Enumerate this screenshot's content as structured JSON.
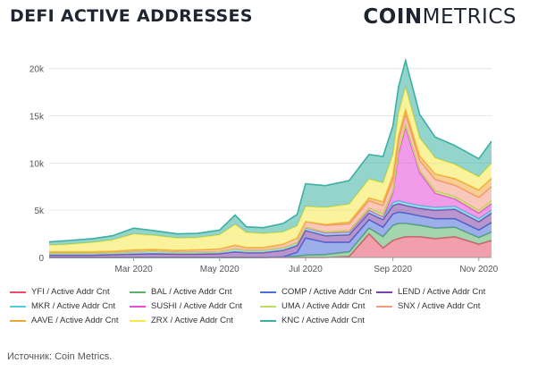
{
  "header": {
    "title": "DEFI ACTIVE ADDRESSES",
    "brand_bold": "COIN",
    "brand_light": "METRICS"
  },
  "source": "Источник: Coin Metrics.",
  "chart_data": {
    "type": "area",
    "stacked": true,
    "title": "DEFI ACTIVE ADDRESSES",
    "xlabel": "",
    "ylabel": "",
    "ylim": [
      0,
      23000
    ],
    "y_ticks": [
      0,
      5000,
      10000,
      15000,
      20000
    ],
    "y_tick_labels": [
      "0",
      "5k",
      "10k",
      "15k",
      "20k"
    ],
    "x_ticks": [
      "2020-03-01",
      "2020-05-01",
      "2020-07-01",
      "2020-09-01",
      "2020-11-01"
    ],
    "x_tick_labels": [
      "Mar 2020",
      "May 2020",
      "Jul 2020",
      "Sep 2020",
      "Nov 2020"
    ],
    "grid": "horizontal",
    "legend_position": "bottom",
    "x": [
      "2020-01-01",
      "2020-01-15",
      "2020-02-01",
      "2020-02-15",
      "2020-03-01",
      "2020-03-15",
      "2020-04-01",
      "2020-04-15",
      "2020-05-01",
      "2020-05-12",
      "2020-05-20",
      "2020-06-01",
      "2020-06-15",
      "2020-06-25",
      "2020-07-01",
      "2020-07-15",
      "2020-08-01",
      "2020-08-15",
      "2020-08-25",
      "2020-09-01",
      "2020-09-05",
      "2020-09-10",
      "2020-09-20",
      "2020-10-01",
      "2020-10-15",
      "2020-11-01",
      "2020-11-10"
    ],
    "series": [
      {
        "name": "YFI / Active Addr Cnt",
        "color": "#e8506a",
        "values": [
          0,
          0,
          0,
          0,
          0,
          0,
          0,
          0,
          0,
          0,
          0,
          0,
          0,
          0,
          0,
          0,
          100,
          2500,
          1000,
          1800,
          2000,
          2200,
          2200,
          2000,
          2200,
          1400,
          1800
        ]
      },
      {
        "name": "BAL / Active Addr Cnt",
        "color": "#5bb36b",
        "values": [
          0,
          0,
          0,
          0,
          0,
          0,
          0,
          0,
          0,
          0,
          0,
          0,
          50,
          150,
          250,
          300,
          500,
          600,
          1200,
          1600,
          1600,
          1400,
          1200,
          1100,
          1000,
          700,
          900
        ]
      },
      {
        "name": "COMP / Active Addr Cnt",
        "color": "#4a6ed9",
        "values": [
          0,
          0,
          0,
          0,
          0,
          0,
          0,
          0,
          0,
          0,
          0,
          0,
          0,
          400,
          1800,
          1300,
          1000,
          900,
          1000,
          1200,
          1200,
          1100,
          1000,
          1000,
          900,
          800,
          1000
        ]
      },
      {
        "name": "LEND / Active Addr Cnt",
        "color": "#7b3fa8",
        "values": [
          250,
          250,
          250,
          300,
          350,
          400,
          350,
          350,
          400,
          600,
          500,
          500,
          700,
          700,
          800,
          700,
          800,
          700,
          800,
          900,
          900,
          800,
          800,
          900,
          1000,
          900,
          1000
        ]
      },
      {
        "name": "MKR / Active Addr Cnt",
        "color": "#4fcfe0",
        "values": [
          200,
          200,
          200,
          200,
          250,
          250,
          200,
          200,
          200,
          300,
          250,
          250,
          250,
          300,
          300,
          300,
          300,
          300,
          300,
          300,
          300,
          300,
          300,
          300,
          300,
          300,
          300
        ]
      },
      {
        "name": "SUSHI / Active Addr Cnt",
        "color": "#e64bd9",
        "values": [
          0,
          0,
          0,
          0,
          0,
          0,
          0,
          0,
          0,
          0,
          0,
          0,
          0,
          0,
          0,
          0,
          0,
          0,
          0,
          1000,
          5000,
          8000,
          3500,
          1500,
          800,
          600,
          700
        ]
      },
      {
        "name": "UMA / Active Addr Cnt",
        "color": "#b8e05c",
        "values": [
          0,
          0,
          0,
          0,
          0,
          0,
          0,
          0,
          0,
          0,
          0,
          0,
          0,
          0,
          50,
          100,
          150,
          200,
          300,
          300,
          300,
          250,
          250,
          250,
          250,
          250,
          300
        ]
      },
      {
        "name": "SNX / Active Addr Cnt",
        "color": "#f59a82",
        "values": [
          150,
          150,
          150,
          150,
          200,
          200,
          200,
          250,
          300,
          400,
          300,
          300,
          400,
          500,
          600,
          700,
          700,
          800,
          900,
          1100,
          1100,
          1100,
          1000,
          1200,
          1200,
          1400,
          1500
        ]
      },
      {
        "name": "AAVE / Active Addr Cnt",
        "color": "#f0a53a",
        "values": [
          0,
          0,
          0,
          0,
          0,
          0,
          0,
          0,
          0,
          0,
          0,
          0,
          0,
          0,
          0,
          100,
          200,
          300,
          400,
          500,
          500,
          500,
          500,
          600,
          700,
          800,
          900
        ]
      },
      {
        "name": "ZRX / Active Addr Cnt",
        "color": "#f5e84a",
        "values": [
          700,
          800,
          1000,
          1200,
          1700,
          1500,
          1300,
          1300,
          1500,
          2200,
          1600,
          1500,
          1300,
          1300,
          1600,
          1800,
          1900,
          2000,
          2000,
          2200,
          2400,
          2400,
          1900,
          1700,
          1500,
          1400,
          1600
        ]
      },
      {
        "name": "KNC / Active Addr Cnt",
        "color": "#3ab0a2",
        "values": [
          350,
          400,
          400,
          450,
          600,
          500,
          450,
          450,
          500,
          1000,
          600,
          600,
          900,
          1200,
          2400,
          2300,
          2500,
          2600,
          2800,
          3000,
          2800,
          2800,
          2500,
          2200,
          2000,
          1900,
          2300
        ]
      }
    ]
  }
}
